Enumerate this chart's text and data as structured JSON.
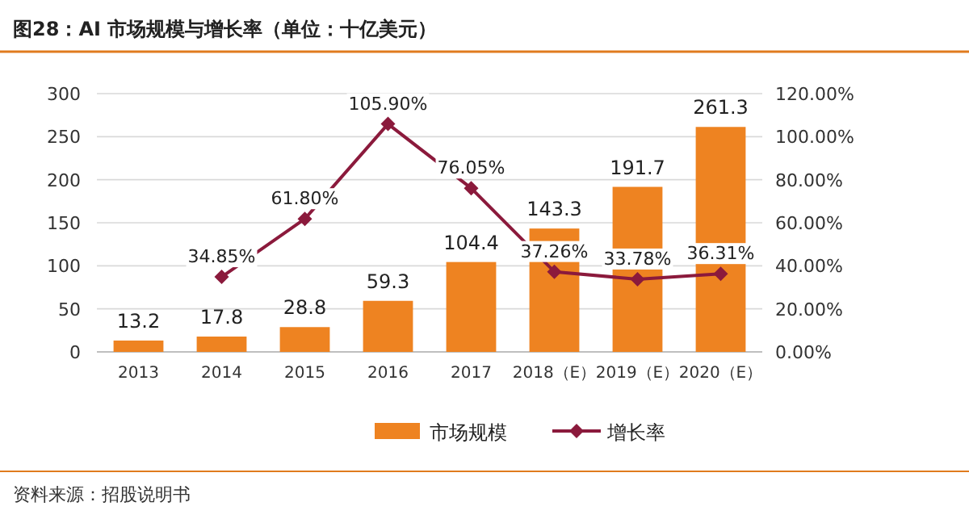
{
  "chart_data": {
    "type": "bar",
    "title": "图28：AI 市场规模与增长率（单位：十亿美元）",
    "categories": [
      "2013",
      "2014",
      "2015",
      "2016",
      "2017",
      "2018（E）",
      "2019（E）",
      "2020（E）"
    ],
    "series": [
      {
        "name": "市场规模",
        "type": "bar",
        "color": "#ee8321",
        "values": [
          13.2,
          17.8,
          28.8,
          59.3,
          104.4,
          143.3,
          191.7,
          261.3
        ],
        "value_labels": [
          "13.2",
          "17.8",
          "28.8",
          "59.3",
          "104.4",
          "143.3",
          "191.7",
          "261.3"
        ]
      },
      {
        "name": "增长率",
        "type": "line",
        "axis": "y2",
        "color": "#8b1a3c",
        "marker": "diamond",
        "values": [
          null,
          34.85,
          61.8,
          105.9,
          76.05,
          37.26,
          33.78,
          36.31
        ],
        "value_labels": [
          null,
          "34.85%",
          "61.80%",
          "105.90%",
          "76.05%",
          "37.26%",
          "33.78%",
          "36.31%"
        ]
      }
    ],
    "ylim": [
      0,
      300
    ],
    "yticks": [
      0,
      50,
      100,
      150,
      200,
      250,
      300
    ],
    "y2lim": [
      0,
      120
    ],
    "y2ticks": [
      {
        "value": 0,
        "label": "0.00%"
      },
      {
        "value": 20,
        "label": "20.00%"
      },
      {
        "value": 40,
        "label": "40.00%"
      },
      {
        "value": 60,
        "label": "60.00%"
      },
      {
        "value": 80,
        "label": "80.00%"
      },
      {
        "value": 100,
        "label": "100.00%"
      },
      {
        "value": 120,
        "label": "120.00%"
      }
    ],
    "grid": "y",
    "legend": "bottom",
    "annotations": [
      "资料来源：招股说明书"
    ]
  }
}
